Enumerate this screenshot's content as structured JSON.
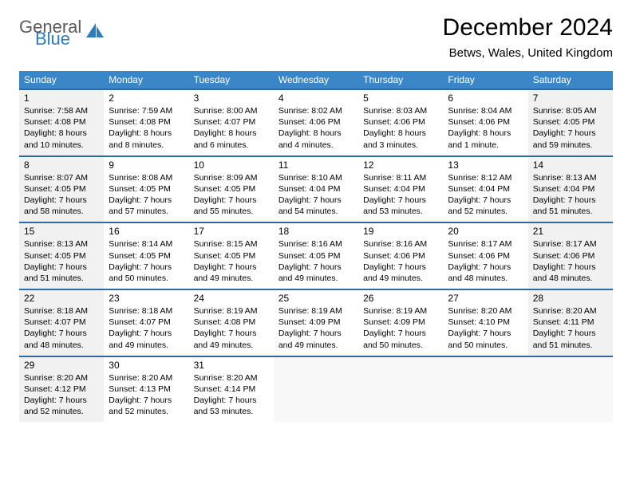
{
  "logo": {
    "general": "General",
    "blue": "Blue"
  },
  "title": "December 2024",
  "location": "Betws, Wales, United Kingdom",
  "colors": {
    "header_bg": "#3b86c6",
    "header_text": "#ffffff",
    "row_border": "#2d6aa3",
    "shaded_bg": "#f1f1f1",
    "logo_gray": "#5a5a5a",
    "logo_blue": "#2d7cc0"
  },
  "day_headers": [
    "Sunday",
    "Monday",
    "Tuesday",
    "Wednesday",
    "Thursday",
    "Friday",
    "Saturday"
  ],
  "weeks": [
    [
      {
        "num": "1",
        "shaded": true,
        "sunrise": "7:58 AM",
        "sunset": "4:08 PM",
        "daylight": "8 hours and 10 minutes."
      },
      {
        "num": "2",
        "shaded": false,
        "sunrise": "7:59 AM",
        "sunset": "4:08 PM",
        "daylight": "8 hours and 8 minutes."
      },
      {
        "num": "3",
        "shaded": false,
        "sunrise": "8:00 AM",
        "sunset": "4:07 PM",
        "daylight": "8 hours and 6 minutes."
      },
      {
        "num": "4",
        "shaded": false,
        "sunrise": "8:02 AM",
        "sunset": "4:06 PM",
        "daylight": "8 hours and 4 minutes."
      },
      {
        "num": "5",
        "shaded": false,
        "sunrise": "8:03 AM",
        "sunset": "4:06 PM",
        "daylight": "8 hours and 3 minutes."
      },
      {
        "num": "6",
        "shaded": false,
        "sunrise": "8:04 AM",
        "sunset": "4:06 PM",
        "daylight": "8 hours and 1 minute."
      },
      {
        "num": "7",
        "shaded": true,
        "sunrise": "8:05 AM",
        "sunset": "4:05 PM",
        "daylight": "7 hours and 59 minutes."
      }
    ],
    [
      {
        "num": "8",
        "shaded": true,
        "sunrise": "8:07 AM",
        "sunset": "4:05 PM",
        "daylight": "7 hours and 58 minutes."
      },
      {
        "num": "9",
        "shaded": false,
        "sunrise": "8:08 AM",
        "sunset": "4:05 PM",
        "daylight": "7 hours and 57 minutes."
      },
      {
        "num": "10",
        "shaded": false,
        "sunrise": "8:09 AM",
        "sunset": "4:05 PM",
        "daylight": "7 hours and 55 minutes."
      },
      {
        "num": "11",
        "shaded": false,
        "sunrise": "8:10 AM",
        "sunset": "4:04 PM",
        "daylight": "7 hours and 54 minutes."
      },
      {
        "num": "12",
        "shaded": false,
        "sunrise": "8:11 AM",
        "sunset": "4:04 PM",
        "daylight": "7 hours and 53 minutes."
      },
      {
        "num": "13",
        "shaded": false,
        "sunrise": "8:12 AM",
        "sunset": "4:04 PM",
        "daylight": "7 hours and 52 minutes."
      },
      {
        "num": "14",
        "shaded": true,
        "sunrise": "8:13 AM",
        "sunset": "4:04 PM",
        "daylight": "7 hours and 51 minutes."
      }
    ],
    [
      {
        "num": "15",
        "shaded": true,
        "sunrise": "8:13 AM",
        "sunset": "4:05 PM",
        "daylight": "7 hours and 51 minutes."
      },
      {
        "num": "16",
        "shaded": false,
        "sunrise": "8:14 AM",
        "sunset": "4:05 PM",
        "daylight": "7 hours and 50 minutes."
      },
      {
        "num": "17",
        "shaded": false,
        "sunrise": "8:15 AM",
        "sunset": "4:05 PM",
        "daylight": "7 hours and 49 minutes."
      },
      {
        "num": "18",
        "shaded": false,
        "sunrise": "8:16 AM",
        "sunset": "4:05 PM",
        "daylight": "7 hours and 49 minutes."
      },
      {
        "num": "19",
        "shaded": false,
        "sunrise": "8:16 AM",
        "sunset": "4:06 PM",
        "daylight": "7 hours and 49 minutes."
      },
      {
        "num": "20",
        "shaded": false,
        "sunrise": "8:17 AM",
        "sunset": "4:06 PM",
        "daylight": "7 hours and 48 minutes."
      },
      {
        "num": "21",
        "shaded": true,
        "sunrise": "8:17 AM",
        "sunset": "4:06 PM",
        "daylight": "7 hours and 48 minutes."
      }
    ],
    [
      {
        "num": "22",
        "shaded": true,
        "sunrise": "8:18 AM",
        "sunset": "4:07 PM",
        "daylight": "7 hours and 48 minutes."
      },
      {
        "num": "23",
        "shaded": false,
        "sunrise": "8:18 AM",
        "sunset": "4:07 PM",
        "daylight": "7 hours and 49 minutes."
      },
      {
        "num": "24",
        "shaded": false,
        "sunrise": "8:19 AM",
        "sunset": "4:08 PM",
        "daylight": "7 hours and 49 minutes."
      },
      {
        "num": "25",
        "shaded": false,
        "sunrise": "8:19 AM",
        "sunset": "4:09 PM",
        "daylight": "7 hours and 49 minutes."
      },
      {
        "num": "26",
        "shaded": false,
        "sunrise": "8:19 AM",
        "sunset": "4:09 PM",
        "daylight": "7 hours and 50 minutes."
      },
      {
        "num": "27",
        "shaded": false,
        "sunrise": "8:20 AM",
        "sunset": "4:10 PM",
        "daylight": "7 hours and 50 minutes."
      },
      {
        "num": "28",
        "shaded": true,
        "sunrise": "8:20 AM",
        "sunset": "4:11 PM",
        "daylight": "7 hours and 51 minutes."
      }
    ],
    [
      {
        "num": "29",
        "shaded": true,
        "sunrise": "8:20 AM",
        "sunset": "4:12 PM",
        "daylight": "7 hours and 52 minutes."
      },
      {
        "num": "30",
        "shaded": false,
        "sunrise": "8:20 AM",
        "sunset": "4:13 PM",
        "daylight": "7 hours and 52 minutes."
      },
      {
        "num": "31",
        "shaded": false,
        "sunrise": "8:20 AM",
        "sunset": "4:14 PM",
        "daylight": "7 hours and 53 minutes."
      },
      {
        "empty": true
      },
      {
        "empty": true
      },
      {
        "empty": true
      },
      {
        "empty": true
      }
    ]
  ],
  "labels": {
    "sunrise_prefix": "Sunrise: ",
    "sunset_prefix": "Sunset: ",
    "daylight_prefix": "Daylight: "
  }
}
